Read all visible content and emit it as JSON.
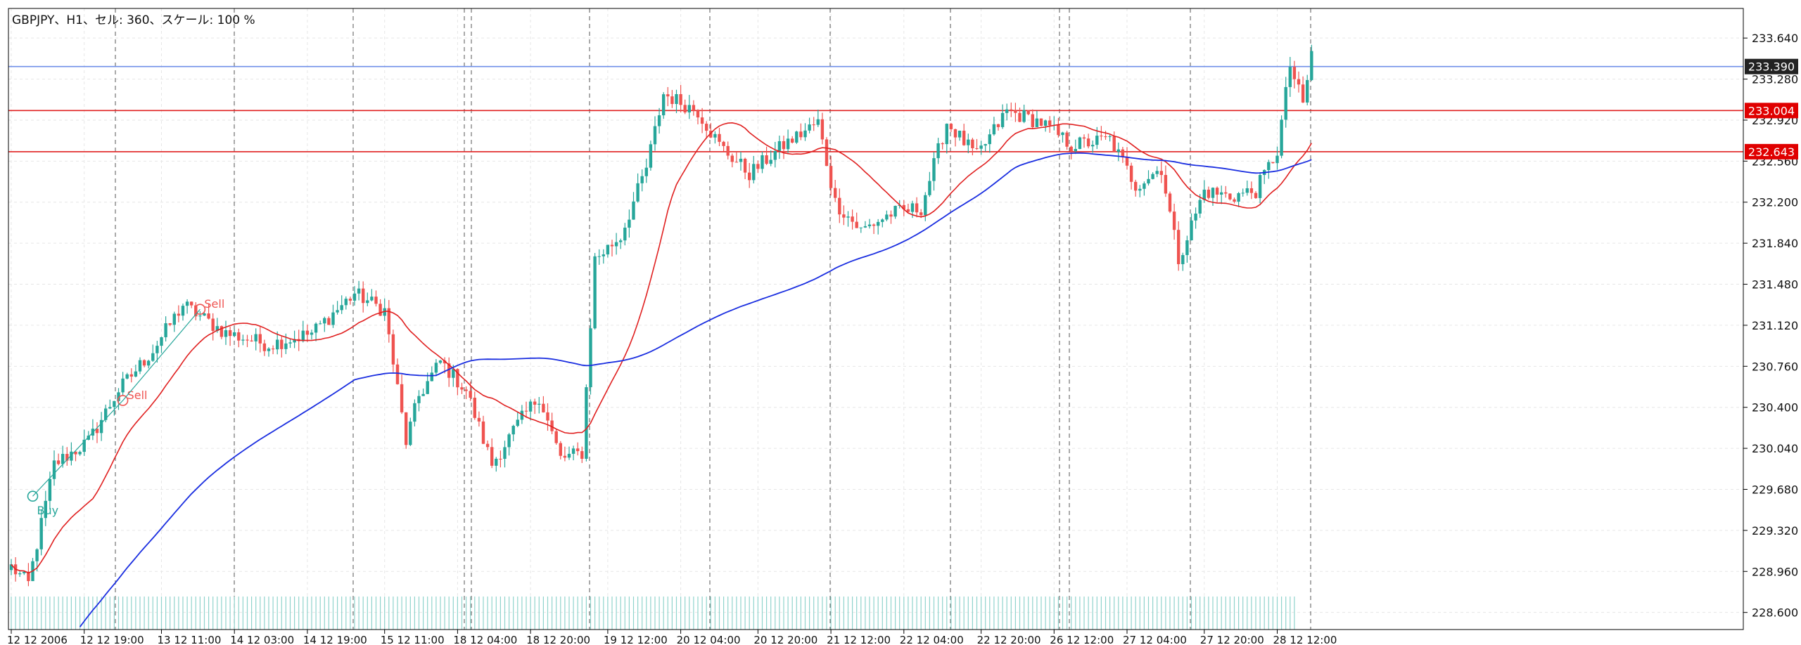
{
  "header": {
    "title": "GBPJPY、H1、セル: 360、スケール: 100 %"
  },
  "colors": {
    "bull": "#26a69a",
    "bear": "#ef5350",
    "ma_fast": "#e02020",
    "ma_slow": "#1a2ee0",
    "hline_blue": "#6f8fe8",
    "hline_red": "#e02020",
    "price_tag_dark": "#222222",
    "price_tag_red": "#e00000",
    "grid": "#e6e6e6",
    "period_sep": "#555555"
  },
  "chart_data": {
    "type": "candlestick",
    "symbol": "GBPJPY",
    "timeframe": "H1",
    "ylim": [
      228.45,
      233.9
    ],
    "y_ticks": [
      "233.640",
      "233.280",
      "232.920",
      "232.560",
      "232.200",
      "231.840",
      "231.480",
      "231.120",
      "230.760",
      "230.400",
      "230.040",
      "229.680",
      "229.320",
      "228.960",
      "228.600"
    ],
    "x_ticks": [
      "12 12 2006",
      "12 12 19:00",
      "13 12 11:00",
      "14 12 03:00",
      "14 12 19:00",
      "15 12 11:00",
      "18 12 04:00",
      "18 12 20:00",
      "19 12 12:00",
      "20 12 04:00",
      "20 12 20:00",
      "21 12 12:00",
      "22 12 04:00",
      "22 12 20:00",
      "26 12 12:00",
      "27 12 04:00",
      "27 12 20:00",
      "28 12 12:00"
    ],
    "horizontal_lines": [
      {
        "price": "233.390",
        "color": "blue",
        "tag": "233.390"
      },
      {
        "price": "233.004",
        "color": "red",
        "tag": "233.004"
      },
      {
        "price": "232.643",
        "color": "red",
        "tag": "232.643"
      }
    ],
    "markers": [
      {
        "label": "Buy",
        "x_index": 5,
        "price": 229.62
      },
      {
        "label": "Sell",
        "x_index": 26,
        "price": 230.46
      },
      {
        "label": "Sell",
        "x_index": 44,
        "price": 231.26
      }
    ],
    "waypoints": [
      [
        0,
        229.0
      ],
      [
        4,
        228.85
      ],
      [
        10,
        229.9
      ],
      [
        18,
        230.1
      ],
      [
        25,
        230.55
      ],
      [
        33,
        230.9
      ],
      [
        40,
        231.3
      ],
      [
        50,
        231.05
      ],
      [
        60,
        230.95
      ],
      [
        70,
        231.05
      ],
      [
        80,
        231.4
      ],
      [
        87,
        231.25
      ],
      [
        92,
        230.1
      ],
      [
        95,
        230.5
      ],
      [
        100,
        230.8
      ],
      [
        106,
        230.55
      ],
      [
        112,
        229.9
      ],
      [
        118,
        230.25
      ],
      [
        123,
        230.5
      ],
      [
        128,
        229.95
      ],
      [
        133,
        230.0
      ],
      [
        136,
        231.7
      ],
      [
        142,
        231.9
      ],
      [
        148,
        232.5
      ],
      [
        152,
        233.15
      ],
      [
        160,
        233.0
      ],
      [
        165,
        232.7
      ],
      [
        172,
        232.45
      ],
      [
        180,
        232.7
      ],
      [
        188,
        232.9
      ],
      [
        192,
        232.2
      ],
      [
        198,
        231.95
      ],
      [
        205,
        232.1
      ],
      [
        212,
        232.15
      ],
      [
        218,
        232.9
      ],
      [
        225,
        232.6
      ],
      [
        232,
        233.0
      ],
      [
        240,
        232.9
      ],
      [
        247,
        232.7
      ],
      [
        256,
        232.75
      ],
      [
        262,
        232.35
      ],
      [
        268,
        232.5
      ],
      [
        272,
        231.7
      ],
      [
        278,
        232.3
      ],
      [
        284,
        232.25
      ],
      [
        290,
        232.3
      ],
      [
        295,
        232.65
      ],
      [
        298,
        233.4
      ],
      [
        301,
        233.05
      ],
      [
        303,
        233.5
      ]
    ]
  }
}
